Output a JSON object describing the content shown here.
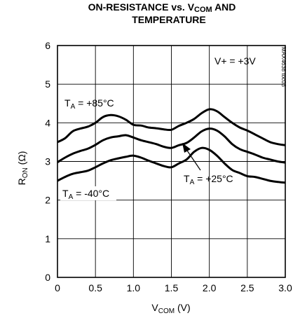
{
  "chart_data": {
    "type": "line",
    "title_line1_main": "ON-RESISTANCE vs. V",
    "title_line1_sub": "COM",
    "title_line1_tail": " AND",
    "title_line2": "TEMPERATURE",
    "xlabel_main": "V",
    "xlabel_sub": "COM",
    "xlabel_tail": " (V)",
    "ylabel_main": "R",
    "ylabel_sub": "ON",
    "ylabel_tail": " (Ω)",
    "xlim": [
      0,
      3.0
    ],
    "ylim": [
      0,
      6
    ],
    "x_ticks": [
      "0",
      "0.5",
      "1.0",
      "1.5",
      "2.0",
      "2.5",
      "3.0"
    ],
    "y_ticks": [
      "0",
      "1",
      "2",
      "3",
      "4",
      "5",
      "6"
    ],
    "grid": true,
    "annotations": {
      "supply": "V+ = +3V",
      "part_id": "MAX4638 toc03",
      "t85_main": "T",
      "t85_sub": "A",
      "t85_tail": " = +85°C",
      "t25_main": "T",
      "t25_sub": "A",
      "t25_tail": " = +25°C",
      "tm40_main": "T",
      "tm40_sub": "A",
      "tm40_tail": " = -40°C"
    },
    "series": [
      {
        "name": "T_A = +85°C",
        "x": [
          0,
          0.1,
          0.2,
          0.3,
          0.4,
          0.5,
          0.6,
          0.7,
          0.8,
          0.9,
          1.0,
          1.1,
          1.2,
          1.3,
          1.4,
          1.5,
          1.6,
          1.7,
          1.8,
          1.9,
          2.0,
          2.1,
          2.2,
          2.3,
          2.4,
          2.5,
          2.6,
          2.7,
          2.8,
          2.9,
          3.0
        ],
        "y": [
          3.5,
          3.6,
          3.78,
          3.85,
          3.9,
          4.0,
          4.15,
          4.2,
          4.17,
          4.08,
          3.95,
          3.93,
          3.88,
          3.86,
          3.83,
          3.82,
          3.92,
          4.0,
          4.1,
          4.25,
          4.35,
          4.3,
          4.15,
          4.0,
          3.88,
          3.8,
          3.7,
          3.6,
          3.5,
          3.45,
          3.42
        ]
      },
      {
        "name": "T_A = +25°C",
        "x": [
          0,
          0.1,
          0.2,
          0.3,
          0.4,
          0.5,
          0.6,
          0.7,
          0.8,
          0.9,
          1.0,
          1.1,
          1.2,
          1.3,
          1.4,
          1.5,
          1.6,
          1.7,
          1.8,
          1.9,
          2.0,
          2.1,
          2.2,
          2.3,
          2.4,
          2.5,
          2.6,
          2.7,
          2.8,
          2.9,
          3.0
        ],
        "y": [
          2.98,
          3.1,
          3.2,
          3.27,
          3.33,
          3.43,
          3.55,
          3.62,
          3.65,
          3.68,
          3.62,
          3.55,
          3.5,
          3.45,
          3.38,
          3.35,
          3.42,
          3.48,
          3.62,
          3.78,
          3.85,
          3.8,
          3.65,
          3.45,
          3.32,
          3.25,
          3.18,
          3.1,
          3.05,
          3.0,
          2.97
        ]
      },
      {
        "name": "T_A = -40°C",
        "x": [
          0,
          0.1,
          0.2,
          0.3,
          0.4,
          0.5,
          0.6,
          0.7,
          0.8,
          0.9,
          1.0,
          1.1,
          1.2,
          1.3,
          1.4,
          1.5,
          1.6,
          1.7,
          1.8,
          1.9,
          2.0,
          2.1,
          2.2,
          2.3,
          2.4,
          2.5,
          2.6,
          2.7,
          2.8,
          2.9,
          3.0
        ],
        "y": [
          2.5,
          2.6,
          2.68,
          2.72,
          2.76,
          2.85,
          2.95,
          3.03,
          3.08,
          3.12,
          3.15,
          3.1,
          3.02,
          2.95,
          2.88,
          2.85,
          2.95,
          3.05,
          3.25,
          3.35,
          3.3,
          3.15,
          2.95,
          2.78,
          2.7,
          2.62,
          2.6,
          2.55,
          2.5,
          2.47,
          2.45
        ]
      }
    ]
  }
}
